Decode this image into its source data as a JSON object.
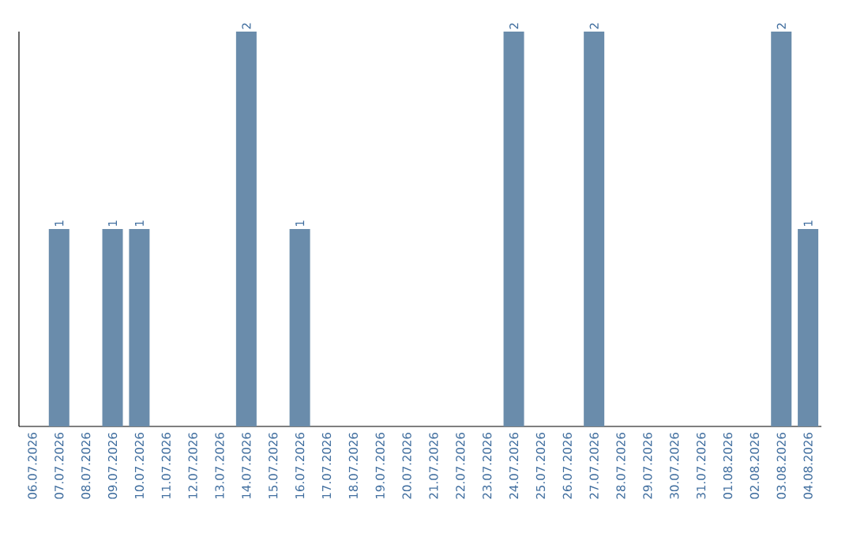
{
  "chart_data": {
    "type": "bar",
    "categories": [
      "06.07.2026",
      "07.07.2026",
      "08.07.2026",
      "09.07.2026",
      "10.07.2026",
      "11.07.2026",
      "12.07.2026",
      "13.07.2026",
      "14.07.2026",
      "15.07.2026",
      "16.07.2026",
      "17.07.2026",
      "18.07.2026",
      "19.07.2026",
      "20.07.2026",
      "21.07.2026",
      "22.07.2026",
      "23.07.2026",
      "24.07.2026",
      "25.07.2026",
      "26.07.2026",
      "27.07.2026",
      "28.07.2026",
      "29.07.2026",
      "30.07.2026",
      "31.07.2026",
      "01.08.2026",
      "02.08.2026",
      "03.08.2026",
      "04.08.2026"
    ],
    "values": [
      0,
      1,
      0,
      1,
      1,
      0,
      0,
      0,
      2,
      0,
      1,
      0,
      0,
      0,
      0,
      0,
      0,
      0,
      2,
      0,
      0,
      2,
      0,
      0,
      0,
      0,
      0,
      0,
      2,
      1
    ],
    "value_labels": [
      null,
      "1",
      null,
      "1",
      "1",
      null,
      null,
      null,
      "2",
      null,
      "1",
      null,
      null,
      null,
      null,
      null,
      null,
      null,
      "2",
      null,
      null,
      "2",
      null,
      null,
      null,
      null,
      null,
      null,
      "2",
      "1"
    ],
    "color": "#6a8cab",
    "ylim": [
      0,
      2
    ],
    "tick_labels": "x"
  }
}
